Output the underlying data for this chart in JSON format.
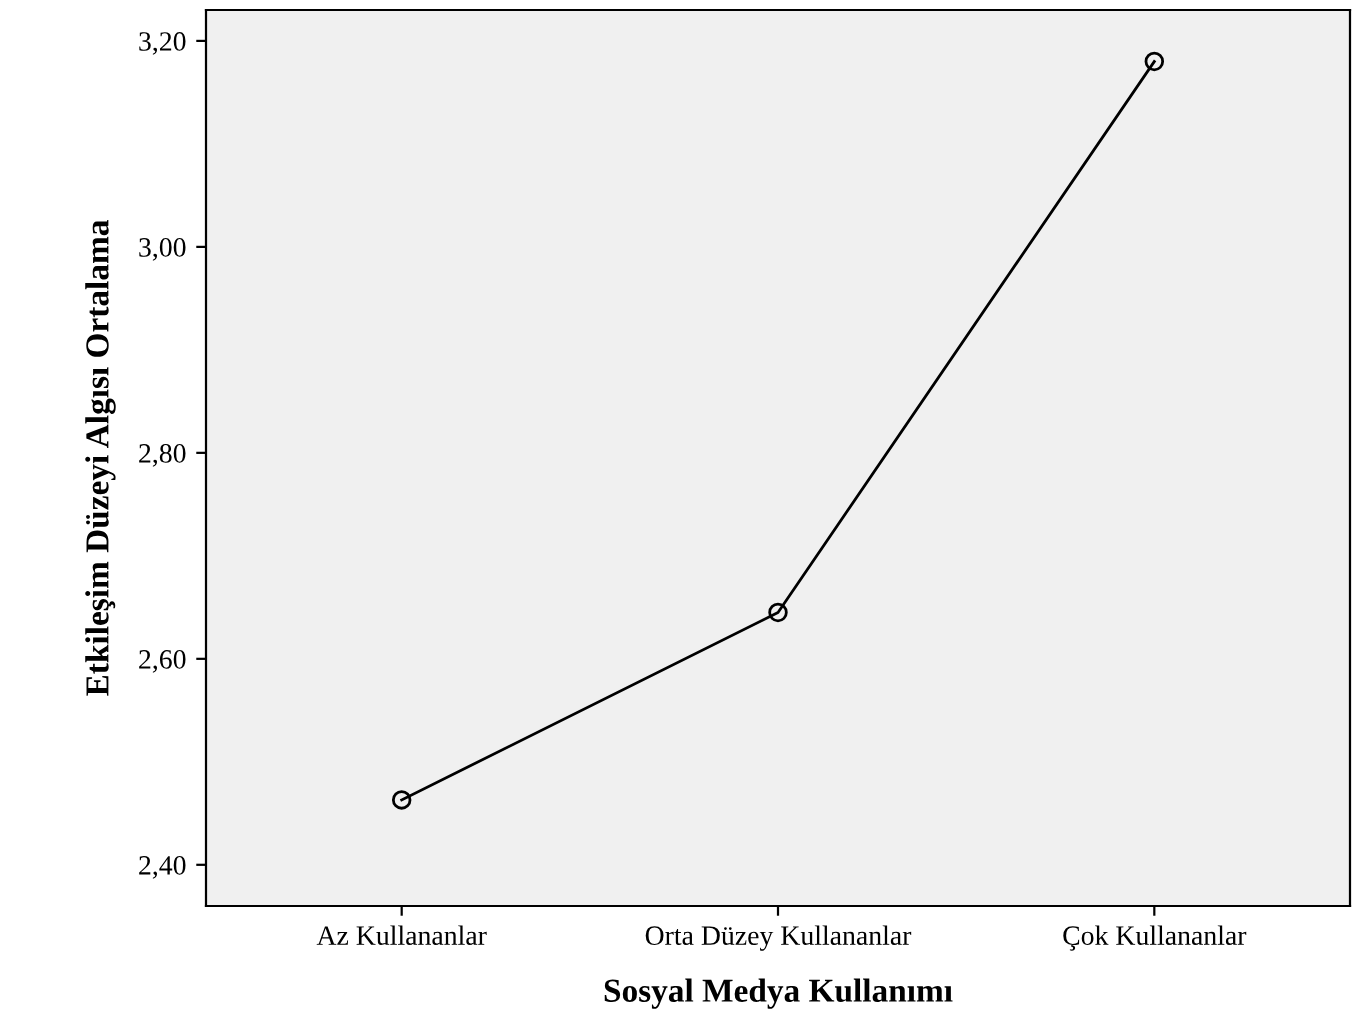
{
  "chart_data": {
    "type": "line",
    "xlabel": "Sosyal Medya Kullanımı",
    "ylabel": "Etkileşim Düzeyi Algısı Ortalama",
    "categories": [
      "Az Kullananlar",
      "Orta Düzey Kullananlar",
      "Çok Kullananlar"
    ],
    "series": [
      {
        "color": "#000000",
        "values": [
          2.463,
          2.645,
          3.18
        ]
      }
    ],
    "ylim": [
      2.36,
      3.23
    ],
    "yticks": [
      {
        "value": 2.4,
        "label": "2,40"
      },
      {
        "value": 2.6,
        "label": "2,60"
      },
      {
        "value": 2.8,
        "label": "2,80"
      },
      {
        "value": 3.0,
        "label": "3,00"
      },
      {
        "value": 3.2,
        "label": "3,20"
      }
    ],
    "marker": "circle",
    "line_style": "solid",
    "grid": false,
    "legend": false
  }
}
